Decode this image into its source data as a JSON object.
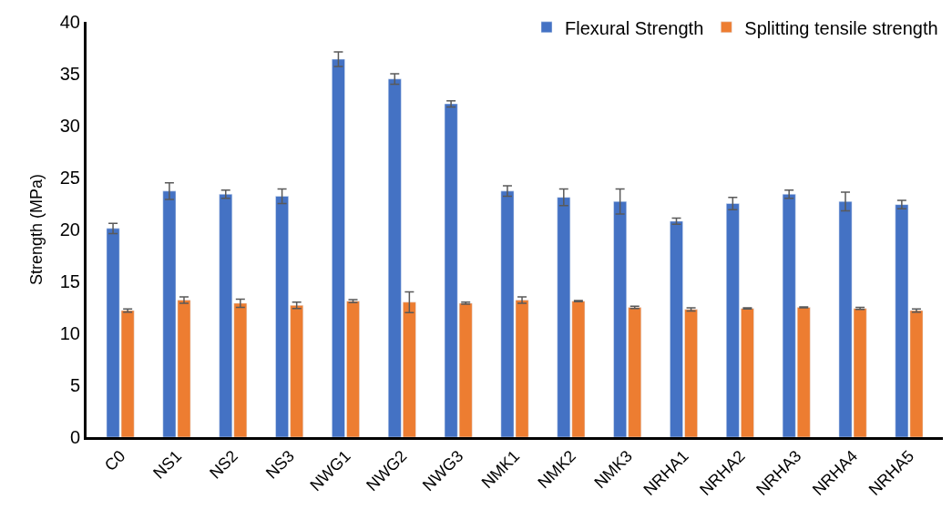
{
  "chart_data": {
    "type": "bar",
    "ylabel": "Strength (MPa)",
    "categories": [
      "C0",
      "NS1",
      "NS2",
      "NS3",
      "NWG1",
      "NWG2",
      "NWG3",
      "NMK1",
      "NMK2",
      "NMK3",
      "NRHA1",
      "NRHA2",
      "NRHA3",
      "NRHA4",
      "NRHA5"
    ],
    "series": [
      {
        "name": "Flexural Strength",
        "color": "#4472c4",
        "values": [
          20.1,
          23.7,
          23.4,
          23.2,
          36.4,
          34.5,
          32.1,
          23.7,
          23.1,
          22.7,
          20.8,
          22.5,
          23.4,
          22.7,
          22.4
        ],
        "errors": [
          0.5,
          0.8,
          0.4,
          0.7,
          0.7,
          0.5,
          0.3,
          0.5,
          0.8,
          1.2,
          0.3,
          0.6,
          0.4,
          0.9,
          0.4
        ]
      },
      {
        "name": "Splitting tensile strength",
        "color": "#ed7d31",
        "values": [
          12.2,
          13.2,
          12.9,
          12.7,
          13.1,
          13.0,
          12.9,
          13.2,
          13.1,
          12.5,
          12.3,
          12.4,
          12.5,
          12.4,
          12.2
        ],
        "errors": [
          0.15,
          0.3,
          0.4,
          0.3,
          0.15,
          1.0,
          0.1,
          0.3,
          0.05,
          0.1,
          0.15,
          0.05,
          0.05,
          0.1,
          0.15
        ]
      }
    ],
    "ylim": [
      0,
      40
    ],
    "yticks": [
      0,
      5,
      10,
      15,
      20,
      25,
      30,
      35,
      40
    ],
    "legend": "top right"
  }
}
